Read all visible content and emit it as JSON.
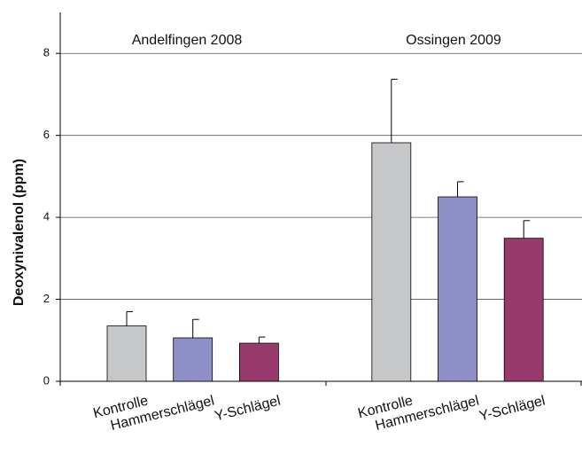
{
  "chart_data": {
    "type": "bar",
    "y_label": "Deoxynivalenol (ppm)",
    "annotations": [
      "Andelfingen 2008",
      "Ossingen 2009"
    ],
    "categories": [
      "Kontrolle",
      "Hammerschlägel",
      "Y-Schlägel",
      "Kontrolle",
      "Hammerschlägel",
      "Y-Schlägel"
    ],
    "values": [
      1.35,
      1.06,
      0.93,
      5.82,
      4.5,
      3.49
    ],
    "errors": [
      0.35,
      0.45,
      0.15,
      1.55,
      0.37,
      0.43
    ],
    "colors": [
      "#c6c7c9",
      "#8f8fc8",
      "#983a6c",
      "#c6c7c9",
      "#8f8fc8",
      "#983a6c"
    ],
    "ylim": [
      0,
      9
    ],
    "yticks": [
      0,
      2,
      4,
      6,
      8
    ],
    "grid": true
  }
}
